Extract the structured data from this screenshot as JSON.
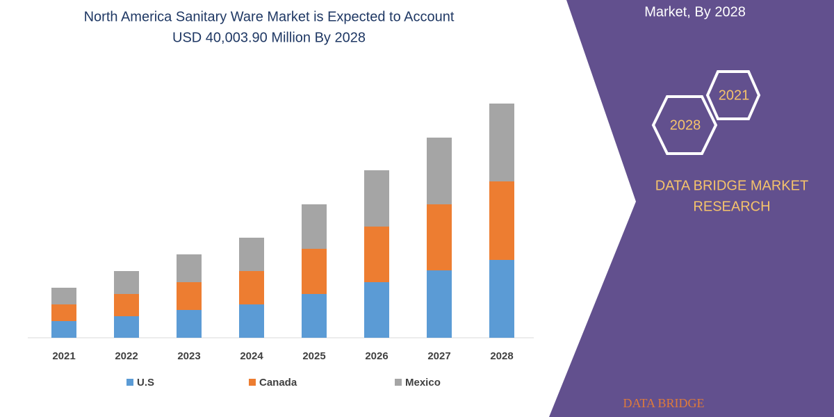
{
  "chart_data": {
    "type": "stacked_bar",
    "title": [
      "North America Sanitary Ware Market is Expected to Account",
      "USD 40,003.90 Million By 2028"
    ],
    "categories": [
      "2021",
      "2022",
      "2023",
      "2024",
      "2025",
      "2026",
      "2027",
      "2028"
    ],
    "series": [
      {
        "name": "U.S",
        "color": "#5b9bd5",
        "values": [
          24,
          31,
          40,
          48,
          63,
          80,
          97,
          112
        ]
      },
      {
        "name": "Canada",
        "color": "#ed7d31",
        "values": [
          24,
          32,
          40,
          48,
          65,
          80,
          95,
          113
        ]
      },
      {
        "name": "Mexico",
        "color": "#a5a5a5",
        "values": [
          24,
          33,
          40,
          48,
          64,
          81,
          96,
          112
        ]
      }
    ]
  },
  "side_panel": {
    "heading": "Market, By 2028",
    "hex_years": [
      "2021",
      "2028"
    ],
    "brand": [
      "DATA BRIDGE MARKET",
      "RESEARCH"
    ],
    "logo": "DATA BRIDGE"
  }
}
